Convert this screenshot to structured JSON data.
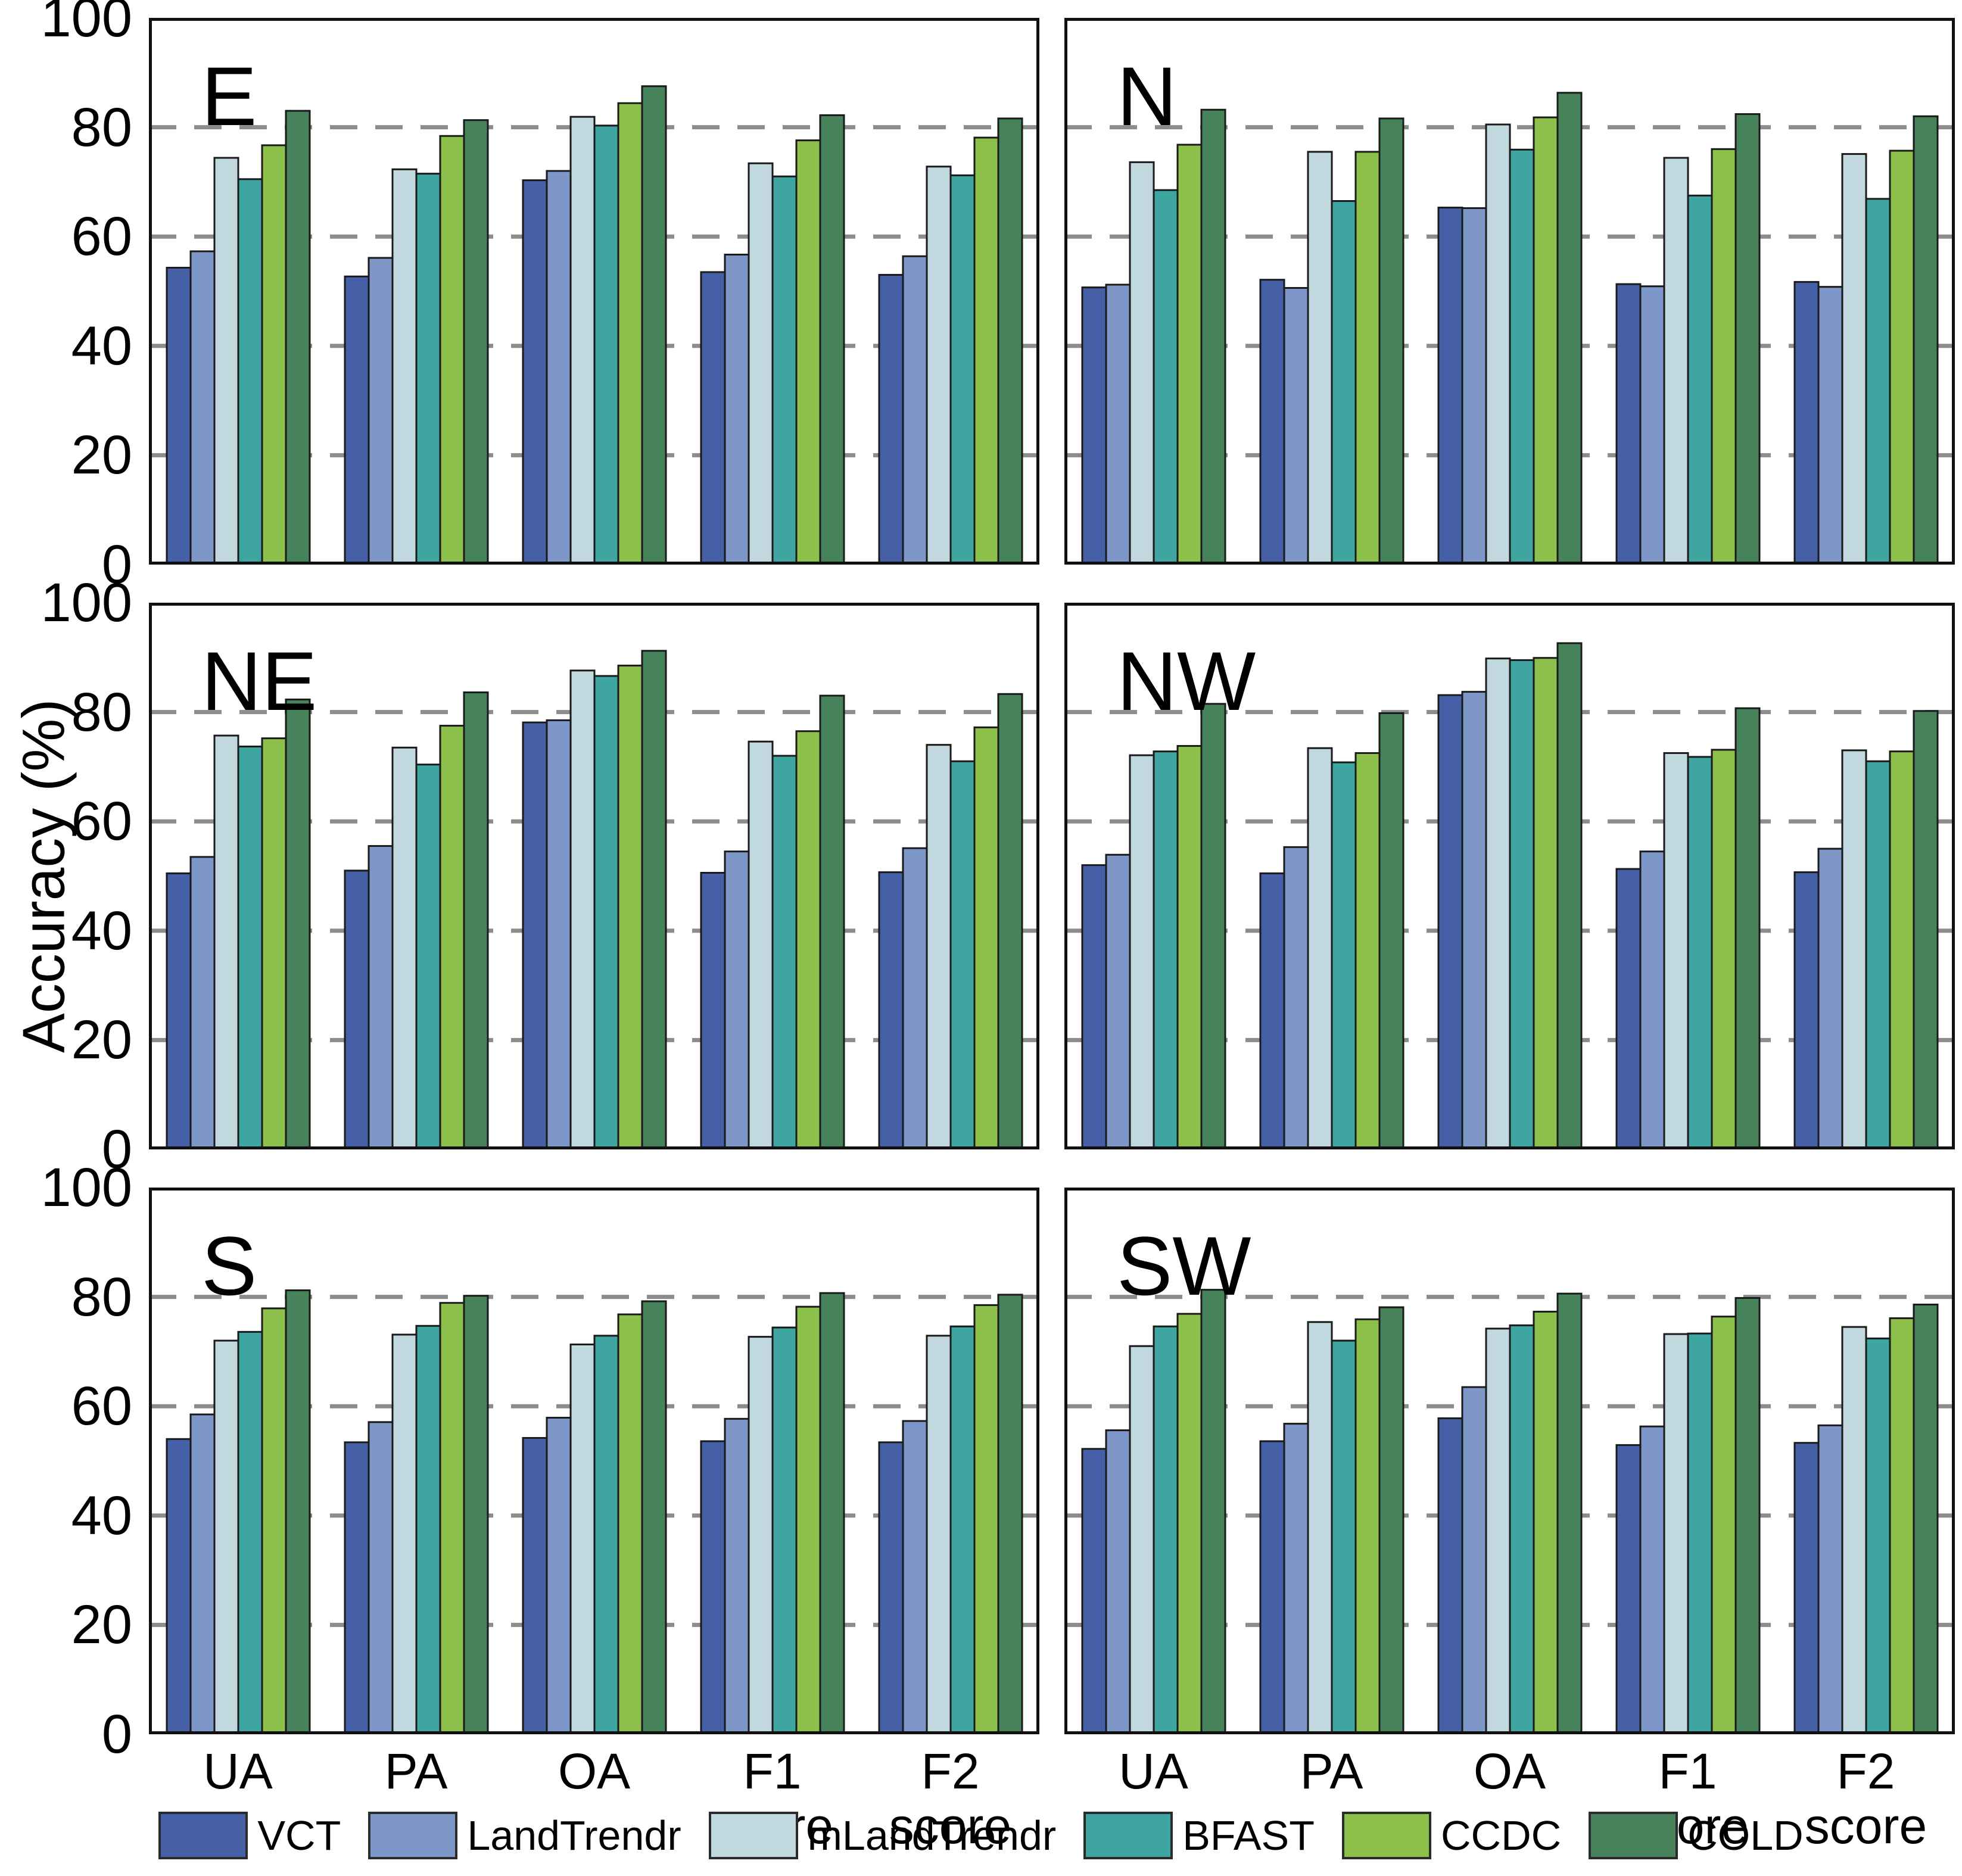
{
  "y_axis": {
    "title": "Accuracy (%)",
    "tick_values": [
      0,
      20,
      40,
      60,
      80,
      100
    ]
  },
  "legend": {
    "items": [
      {
        "label": "VCT",
        "color": "#4560A7"
      },
      {
        "label": "LandTrendr",
        "color": "#7E97C9"
      },
      {
        "label": "mLandTrendr",
        "color": "#C0D8DE"
      },
      {
        "label": "BFAST",
        "color": "#3EA5A0"
      },
      {
        "label": "CCDC",
        "color": "#8CC04B"
      },
      {
        "label": "COLD",
        "color": "#47835A"
      }
    ]
  },
  "chart_data": {
    "type": "bar",
    "categories": [
      "UA",
      "PA",
      "OA",
      "F1 score",
      "F2 score"
    ],
    "ylabel": "Accuracy (%)",
    "ylim": [
      0,
      100
    ],
    "gridlines": [
      20,
      40,
      60,
      80
    ],
    "grid_style": "dashed",
    "legend_position": "bottom",
    "series_names": [
      "VCT",
      "LandTrendr",
      "mLandTrendr",
      "BFAST",
      "CCDC",
      "COLD"
    ],
    "subplots": [
      {
        "title": "E",
        "series": [
          {
            "name": "VCT",
            "values": [
              54.3,
              52.7,
              70.3,
              53.5,
              53.0
            ]
          },
          {
            "name": "LandTrendr",
            "values": [
              57.3,
              56.1,
              72.0,
              56.7,
              56.4
            ]
          },
          {
            "name": "mLandTrendr",
            "values": [
              74.4,
              72.3,
              81.9,
              73.4,
              72.8
            ]
          },
          {
            "name": "BFAST",
            "values": [
              70.5,
              71.5,
              80.3,
              71.0,
              71.2
            ]
          },
          {
            "name": "CCDC",
            "values": [
              76.7,
              78.4,
              84.4,
              77.6,
              78.1
            ]
          },
          {
            "name": "COLD",
            "values": [
              83.0,
              81.3,
              87.5,
              82.2,
              81.6
            ]
          }
        ]
      },
      {
        "title": "N",
        "series": [
          {
            "name": "VCT",
            "values": [
              50.7,
              52.1,
              65.3,
              51.3,
              51.7
            ]
          },
          {
            "name": "LandTrendr",
            "values": [
              51.2,
              50.6,
              65.2,
              50.9,
              50.8
            ]
          },
          {
            "name": "mLandTrendr",
            "values": [
              73.6,
              75.5,
              80.5,
              74.4,
              75.1
            ]
          },
          {
            "name": "BFAST",
            "values": [
              68.5,
              66.5,
              75.9,
              67.5,
              66.9
            ]
          },
          {
            "name": "CCDC",
            "values": [
              76.8,
              75.5,
              81.8,
              76.0,
              75.7
            ]
          },
          {
            "name": "COLD",
            "values": [
              83.2,
              81.6,
              86.3,
              82.4,
              82.0
            ]
          }
        ]
      },
      {
        "title": "NE",
        "series": [
          {
            "name": "VCT",
            "values": [
              50.5,
              51.0,
              78.1,
              50.6,
              50.7
            ]
          },
          {
            "name": "LandTrendr",
            "values": [
              53.5,
              55.5,
              78.5,
              54.5,
              55.1
            ]
          },
          {
            "name": "mLandTrendr",
            "values": [
              75.7,
              73.5,
              87.6,
              74.6,
              74.0
            ]
          },
          {
            "name": "BFAST",
            "values": [
              73.7,
              70.4,
              86.6,
              72.0,
              71.0
            ]
          },
          {
            "name": "CCDC",
            "values": [
              75.2,
              77.5,
              88.5,
              76.5,
              77.2
            ]
          },
          {
            "name": "COLD",
            "values": [
              82.3,
              83.6,
              91.2,
              83.0,
              83.3
            ]
          }
        ]
      },
      {
        "title": "NW",
        "series": [
          {
            "name": "VCT",
            "values": [
              52.0,
              50.5,
              83.1,
              51.3,
              50.7
            ]
          },
          {
            "name": "LandTrendr",
            "values": [
              53.9,
              55.3,
              83.7,
              54.5,
              55.0
            ]
          },
          {
            "name": "mLandTrendr",
            "values": [
              72.1,
              73.4,
              89.8,
              72.5,
              73.0
            ]
          },
          {
            "name": "BFAST",
            "values": [
              72.8,
              70.8,
              89.5,
              71.8,
              71.0
            ]
          },
          {
            "name": "CCDC",
            "values": [
              73.8,
              72.5,
              89.9,
              73.1,
              72.8
            ]
          },
          {
            "name": "COLD",
            "values": [
              81.5,
              79.8,
              92.6,
              80.7,
              80.2
            ]
          }
        ]
      },
      {
        "title": "S",
        "series": [
          {
            "name": "VCT",
            "values": [
              54.0,
              53.4,
              54.2,
              53.6,
              53.4
            ]
          },
          {
            "name": "LandTrendr",
            "values": [
              58.5,
              57.1,
              57.9,
              57.7,
              57.3
            ]
          },
          {
            "name": "mLandTrendr",
            "values": [
              72.0,
              73.1,
              71.3,
              72.7,
              72.9
            ]
          },
          {
            "name": "BFAST",
            "values": [
              73.6,
              74.7,
              72.9,
              74.4,
              74.6
            ]
          },
          {
            "name": "CCDC",
            "values": [
              77.9,
              78.9,
              76.8,
              78.2,
              78.5
            ]
          },
          {
            "name": "COLD",
            "values": [
              81.2,
              80.2,
              79.2,
              80.7,
              80.4
            ]
          }
        ]
      },
      {
        "title": "SW",
        "series": [
          {
            "name": "VCT",
            "values": [
              52.2,
              53.6,
              57.8,
              52.9,
              53.3
            ]
          },
          {
            "name": "LandTrendr",
            "values": [
              55.6,
              56.8,
              63.5,
              56.3,
              56.5
            ]
          },
          {
            "name": "mLandTrendr",
            "values": [
              71.0,
              75.4,
              74.2,
              73.2,
              74.5
            ]
          },
          {
            "name": "BFAST",
            "values": [
              74.6,
              72.0,
              74.8,
              73.3,
              72.4
            ]
          },
          {
            "name": "CCDC",
            "values": [
              76.9,
              75.9,
              77.3,
              76.4,
              76.1
            ]
          },
          {
            "name": "COLD",
            "values": [
              81.3,
              78.1,
              80.6,
              79.8,
              78.6
            ]
          }
        ]
      }
    ]
  }
}
